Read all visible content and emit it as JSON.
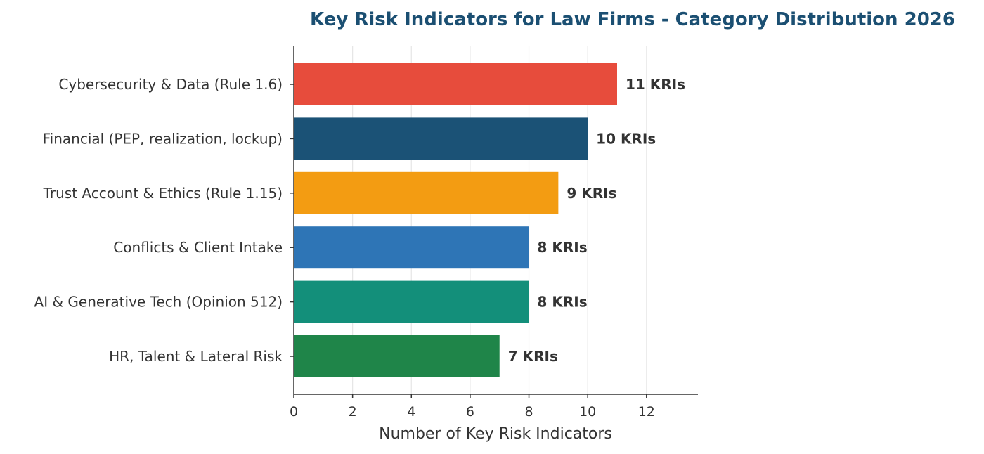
{
  "chart_data": {
    "type": "bar",
    "orientation": "horizontal",
    "title": "Key Risk Indicators for Law Firms - Category Distribution 2026",
    "xlabel": "Number of Key Risk Indicators",
    "ylabel": "",
    "xlim": [
      0,
      13.75
    ],
    "xticks": [
      0,
      2,
      4,
      6,
      8,
      10,
      12
    ],
    "grid": "vertical",
    "categories": [
      "Cybersecurity & Data (Rule 1.6)",
      "Financial (PEP, realization, lockup)",
      "Trust Account & Ethics (Rule 1.15)",
      "Conflicts & Client Intake",
      "AI & Generative Tech (Opinion 512)",
      "HR, Talent & Lateral Risk"
    ],
    "values": [
      11,
      10,
      9,
      8,
      8,
      7
    ],
    "data_labels": [
      "11 KRIs",
      "10 KRIs",
      "9 KRIs",
      "8 KRIs",
      "8 KRIs",
      "7 KRIs"
    ],
    "colors": [
      "#e74c3c",
      "#1b5276",
      "#f39c12",
      "#2e75b6",
      "#138f7a",
      "#1f8549"
    ]
  },
  "title_color": "#1b4f72"
}
